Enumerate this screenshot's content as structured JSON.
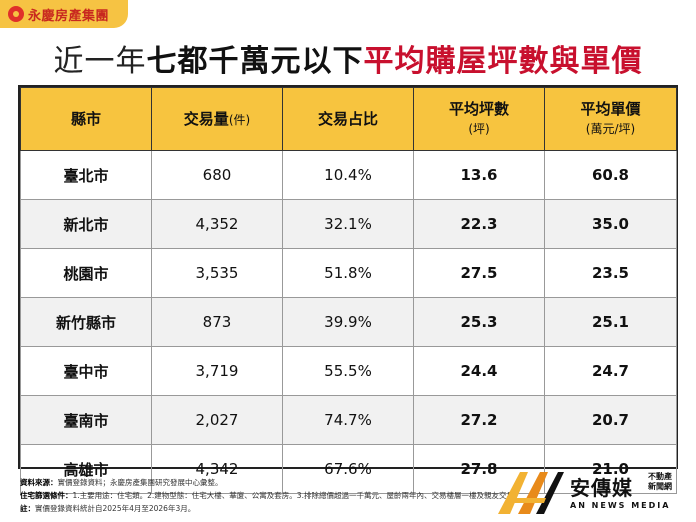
{
  "brand": {
    "name": "永慶房產集團"
  },
  "title": {
    "part1": "近一年",
    "part2": "七都千萬元以下",
    "part3": "平均購屋坪數與單價"
  },
  "table": {
    "headers": [
      {
        "label": "縣市",
        "sub": ""
      },
      {
        "label": "交易量",
        "sub": "(件)"
      },
      {
        "label": "交易占比",
        "sub": ""
      },
      {
        "label": "平均坪數",
        "sub": "(坪)"
      },
      {
        "label": "平均單價",
        "sub": "(萬元/坪)"
      }
    ],
    "rows": [
      {
        "city": "臺北市",
        "volume": "680",
        "share": "10.4%",
        "size": "13.6",
        "price": "60.8"
      },
      {
        "city": "新北市",
        "volume": "4,352",
        "share": "32.1%",
        "size": "22.3",
        "price": "35.0"
      },
      {
        "city": "桃園市",
        "volume": "3,535",
        "share": "51.8%",
        "size": "27.5",
        "price": "23.5"
      },
      {
        "city": "新竹縣市",
        "volume": "873",
        "share": "39.9%",
        "size": "25.3",
        "price": "25.1"
      },
      {
        "city": "臺中市",
        "volume": "3,719",
        "share": "55.5%",
        "size": "24.4",
        "price": "24.7"
      },
      {
        "city": "臺南市",
        "volume": "2,027",
        "share": "74.7%",
        "size": "27.2",
        "price": "20.7"
      },
      {
        "city": "高雄市",
        "volume": "4,342",
        "share": "67.6%",
        "size": "27.8",
        "price": "21.0"
      }
    ]
  },
  "notes": {
    "source_label": "資料來源：",
    "source_text": "實價登錄資料；永慶房產集團研究發展中心彙整。",
    "criteria_label": "住宅篩選條件：",
    "criteria_text": "1.主要用途：住宅類。2.建物型態：住宅大樓、華廈、公寓及套房。3.排除總價超過一千萬元、屋齡兩年內、交易樓層一樓及親友交易。",
    "note_label": "註：",
    "note_text": "實價登錄資料統計自2025年4月至2026年3月。"
  },
  "footer": {
    "name": "安傳媒",
    "tag1": "不動產",
    "tag2": "新聞網",
    "en": "AN NEWS MEDIA"
  },
  "colors": {
    "header_bg": "#f7c43f",
    "title_accent": "#c8102e",
    "brand_red": "#c8281f"
  }
}
